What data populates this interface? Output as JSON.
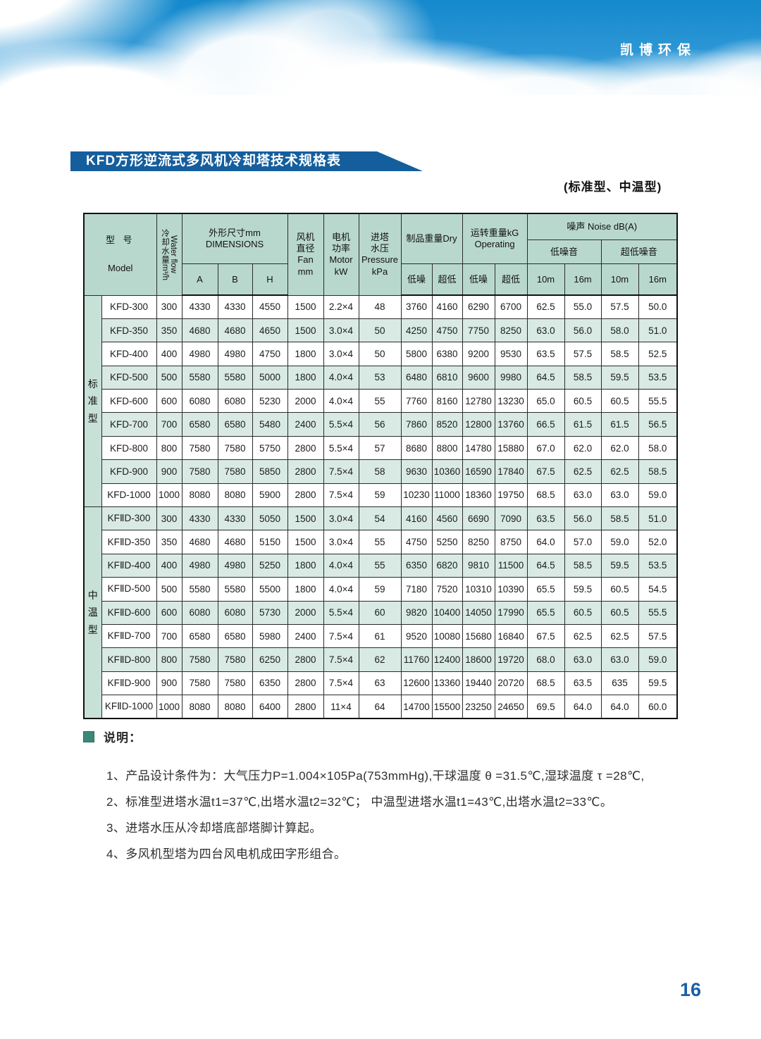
{
  "brand": "凯博环保",
  "title": "KFD方形逆流式多风机冷却塔技术规格表",
  "subtitle": "(标准型、中温型)",
  "page_number": "16",
  "accent_colors": {
    "banner_blue": "#145e9e",
    "header_green": "#b9d8cd",
    "row_shade_green": "#d8eae3",
    "group_col_green": "#c7e1d7",
    "page_number_blue": "#1a5fa8",
    "note_bullet_teal": "#3a8878"
  },
  "table": {
    "headers": {
      "model_cn": "型 号",
      "model_en": "Model",
      "water_flow_cn": "冷却水量",
      "water_flow_unit": "m³/h",
      "water_flow_en": "Water flow",
      "dimensions": "外形尺寸mm\nDIMENSIONS",
      "dim_cols": [
        "A",
        "B",
        "H"
      ],
      "fan": "风机\n直径\nFan\nmm",
      "motor": "电机\n功率\nMotor\nkW",
      "pressure": "进塔\n水压\nPressure\nkPa",
      "dry_weight": "制品重量Dry",
      "operating_weight": "运转重量kG\nOperating",
      "noise": "噪声 Noise dB(A)",
      "low_noise": "低噪音",
      "ultra_low_noise": "超低噪音",
      "sub_low": "低噪",
      "sub_ultra": "超低",
      "dist_10m": "10m",
      "dist_16m": "16m"
    },
    "groups": [
      {
        "label": "标准型",
        "rows": [
          {
            "model": "KFD-300",
            "flow": "300",
            "a": "4330",
            "b": "4330",
            "h": "4550",
            "fan": "1500",
            "motor": "2.2×4",
            "pressure": "48",
            "dry_low": "3760",
            "dry_ultra": "4160",
            "op_low": "6290",
            "op_ultra": "6700",
            "n10": "62.5",
            "n16": "55.0",
            "u10": "57.5",
            "u16": "50.0",
            "shaded": false
          },
          {
            "model": "KFD-350",
            "flow": "350",
            "a": "4680",
            "b": "4680",
            "h": "4650",
            "fan": "1500",
            "motor": "3.0×4",
            "pressure": "50",
            "dry_low": "4250",
            "dry_ultra": "4750",
            "op_low": "7750",
            "op_ultra": "8250",
            "n10": "63.0",
            "n16": "56.0",
            "u10": "58.0",
            "u16": "51.0",
            "shaded": true
          },
          {
            "model": "KFD-400",
            "flow": "400",
            "a": "4980",
            "b": "4980",
            "h": "4750",
            "fan": "1800",
            "motor": "3.0×4",
            "pressure": "50",
            "dry_low": "5800",
            "dry_ultra": "6380",
            "op_low": "9200",
            "op_ultra": "9530",
            "n10": "63.5",
            "n16": "57.5",
            "u10": "58.5",
            "u16": "52.5",
            "shaded": false
          },
          {
            "model": "KFD-500",
            "flow": "500",
            "a": "5580",
            "b": "5580",
            "h": "5000",
            "fan": "1800",
            "motor": "4.0×4",
            "pressure": "53",
            "dry_low": "6480",
            "dry_ultra": "6810",
            "op_low": "9600",
            "op_ultra": "9980",
            "n10": "64.5",
            "n16": "58.5",
            "u10": "59.5",
            "u16": "53.5",
            "shaded": true
          },
          {
            "model": "KFD-600",
            "flow": "600",
            "a": "6080",
            "b": "6080",
            "h": "5230",
            "fan": "2000",
            "motor": "4.0×4",
            "pressure": "55",
            "dry_low": "7760",
            "dry_ultra": "8160",
            "op_low": "12780",
            "op_ultra": "13230",
            "n10": "65.0",
            "n16": "60.5",
            "u10": "60.5",
            "u16": "55.5",
            "shaded": false
          },
          {
            "model": "KFD-700",
            "flow": "700",
            "a": "6580",
            "b": "6580",
            "h": "5480",
            "fan": "2400",
            "motor": "5.5×4",
            "pressure": "56",
            "dry_low": "7860",
            "dry_ultra": "8520",
            "op_low": "12800",
            "op_ultra": "13760",
            "n10": "66.5",
            "n16": "61.5",
            "u10": "61.5",
            "u16": "56.5",
            "shaded": true
          },
          {
            "model": "KFD-800",
            "flow": "800",
            "a": "7580",
            "b": "7580",
            "h": "5750",
            "fan": "2800",
            "motor": "5.5×4",
            "pressure": "57",
            "dry_low": "8680",
            "dry_ultra": "8800",
            "op_low": "14780",
            "op_ultra": "15880",
            "n10": "67.0",
            "n16": "62.0",
            "u10": "62.0",
            "u16": "58.0",
            "shaded": false
          },
          {
            "model": "KFD-900",
            "flow": "900",
            "a": "7580",
            "b": "7580",
            "h": "5850",
            "fan": "2800",
            "motor": "7.5×4",
            "pressure": "58",
            "dry_low": "9630",
            "dry_ultra": "10360",
            "op_low": "16590",
            "op_ultra": "17840",
            "n10": "67.5",
            "n16": "62.5",
            "u10": "62.5",
            "u16": "58.5",
            "shaded": true
          },
          {
            "model": "KFD-1000",
            "flow": "1000",
            "a": "8080",
            "b": "8080",
            "h": "5900",
            "fan": "2800",
            "motor": "7.5×4",
            "pressure": "59",
            "dry_low": "10230",
            "dry_ultra": "11000",
            "op_low": "18360",
            "op_ultra": "19750",
            "n10": "68.5",
            "n16": "63.0",
            "u10": "63.0",
            "u16": "59.0",
            "shaded": false
          }
        ]
      },
      {
        "label": "中温型",
        "rows": [
          {
            "model": "KFⅡD-300",
            "flow": "300",
            "a": "4330",
            "b": "4330",
            "h": "5050",
            "fan": "1500",
            "motor": "3.0×4",
            "pressure": "54",
            "dry_low": "4160",
            "dry_ultra": "4560",
            "op_low": "6690",
            "op_ultra": "7090",
            "n10": "63.5",
            "n16": "56.0",
            "u10": "58.5",
            "u16": "51.0",
            "shaded": true
          },
          {
            "model": "KFⅡD-350",
            "flow": "350",
            "a": "4680",
            "b": "4680",
            "h": "5150",
            "fan": "1500",
            "motor": "3.0×4",
            "pressure": "55",
            "dry_low": "4750",
            "dry_ultra": "5250",
            "op_low": "8250",
            "op_ultra": "8750",
            "n10": "64.0",
            "n16": "57.0",
            "u10": "59.0",
            "u16": "52.0",
            "shaded": false
          },
          {
            "model": "KFⅡD-400",
            "flow": "400",
            "a": "4980",
            "b": "4980",
            "h": "5250",
            "fan": "1800",
            "motor": "4.0×4",
            "pressure": "55",
            "dry_low": "6350",
            "dry_ultra": "6820",
            "op_low": "9810",
            "op_ultra": "11500",
            "n10": "64.5",
            "n16": "58.5",
            "u10": "59.5",
            "u16": "53.5",
            "shaded": true
          },
          {
            "model": "KFⅡD-500",
            "flow": "500",
            "a": "5580",
            "b": "5580",
            "h": "5500",
            "fan": "1800",
            "motor": "4.0×4",
            "pressure": "59",
            "dry_low": "7180",
            "dry_ultra": "7520",
            "op_low": "10310",
            "op_ultra": "10390",
            "n10": "65.5",
            "n16": "59.5",
            "u10": "60.5",
            "u16": "54.5",
            "shaded": false
          },
          {
            "model": "KFⅡD-600",
            "flow": "600",
            "a": "6080",
            "b": "6080",
            "h": "5730",
            "fan": "2000",
            "motor": "5.5×4",
            "pressure": "60",
            "dry_low": "9820",
            "dry_ultra": "10400",
            "op_low": "14050",
            "op_ultra": "17990",
            "n10": "65.5",
            "n16": "60.5",
            "u10": "60.5",
            "u16": "55.5",
            "shaded": true
          },
          {
            "model": "KFⅡD-700",
            "flow": "700",
            "a": "6580",
            "b": "6580",
            "h": "5980",
            "fan": "2400",
            "motor": "7.5×4",
            "pressure": "61",
            "dry_low": "9520",
            "dry_ultra": "10080",
            "op_low": "15680",
            "op_ultra": "16840",
            "n10": "67.5",
            "n16": "62.5",
            "u10": "62.5",
            "u16": "57.5",
            "shaded": false
          },
          {
            "model": "KFⅡD-800",
            "flow": "800",
            "a": "7580",
            "b": "7580",
            "h": "6250",
            "fan": "2800",
            "motor": "7.5×4",
            "pressure": "62",
            "dry_low": "11760",
            "dry_ultra": "12400",
            "op_low": "18600",
            "op_ultra": "19720",
            "n10": "68.0",
            "n16": "63.0",
            "u10": "63.0",
            "u16": "59.0",
            "shaded": true
          },
          {
            "model": "KFⅡD-900",
            "flow": "900",
            "a": "7580",
            "b": "7580",
            "h": "6350",
            "fan": "2800",
            "motor": "7.5×4",
            "pressure": "63",
            "dry_low": "12600",
            "dry_ultra": "13360",
            "op_low": "19440",
            "op_ultra": "20720",
            "n10": "68.5",
            "n16": "63.5",
            "u10": "635",
            "u16": "59.5",
            "shaded": false
          },
          {
            "model": "KFⅡD-1000",
            "flow": "1000",
            "a": "8080",
            "b": "8080",
            "h": "6400",
            "fan": "2800",
            "motor": "11×4",
            "pressure": "64",
            "dry_low": "14700",
            "dry_ultra": "15500",
            "op_low": "23250",
            "op_ultra": "24650",
            "n10": "69.5",
            "n16": "64.0",
            "u10": "64.0",
            "u16": "60.0",
            "shaded": false
          }
        ]
      }
    ]
  },
  "notes": {
    "heading": "说明：",
    "items": [
      "1、产品设计条件为：大气压力P=1.004×105Pa(753mmHg),干球温度 θ =31.5℃,湿球温度 τ =28℃,",
      "2、标准型进塔水温t1=37℃,出塔水温t2=32℃； 中温型进塔水温t1=43℃,出塔水温t2=33℃。",
      "3、进塔水压从冷却塔底部塔脚计算起。",
      "4、多风机型塔为四台风电机成田字形组合。"
    ]
  }
}
